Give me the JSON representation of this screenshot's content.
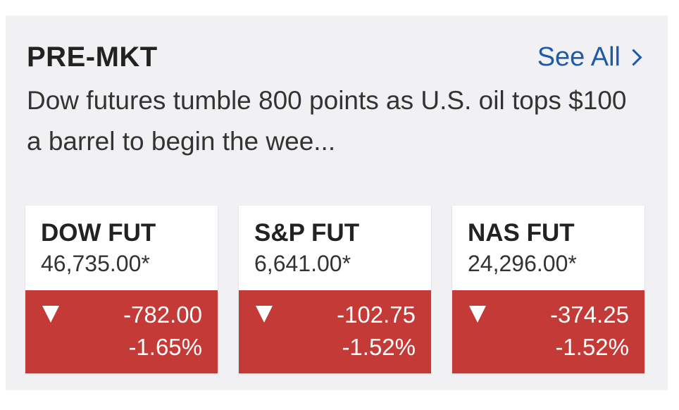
{
  "section": {
    "title": "PRE-MKT",
    "see_all_label": "See All"
  },
  "headline": "Dow futures tumble 800 points as U.S. oil tops $100 a barrel to begin the wee...",
  "cards": [
    {
      "symbol": "DOW FUT",
      "price": "46,735.00*",
      "change": "-782.00",
      "percent": "-1.65%"
    },
    {
      "symbol": "S&P FUT",
      "price": "6,641.00*",
      "change": "-102.75",
      "percent": "-1.52%"
    },
    {
      "symbol": "NAS FUT",
      "price": "24,296.00*",
      "change": "-374.25",
      "percent": "-1.52%"
    }
  ],
  "colors": {
    "negative": "#c33a36",
    "link": "#1f5aa6",
    "panel_bg": "#f1f1f4"
  },
  "icons": {
    "see_all": "chevron-right-icon",
    "direction": "down-arrow-icon"
  }
}
